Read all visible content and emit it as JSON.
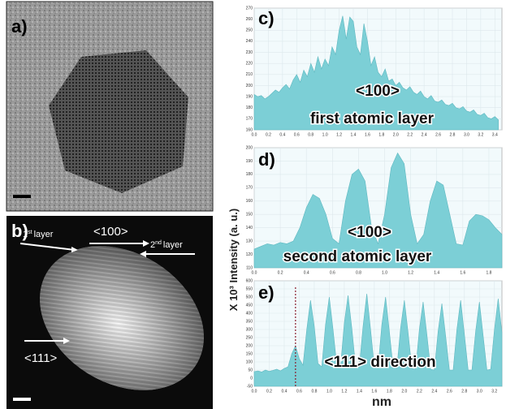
{
  "figure": {
    "y_label": "X 10³ Intensity (a. u.)",
    "x_label": "nm"
  },
  "images": [
    {
      "label": "a)"
    },
    {
      "label": "b)",
      "annotations": {
        "first_layer": {
          "number": "1",
          "suffix": "st",
          "text": "layer"
        },
        "second_layer": {
          "number": "2",
          "suffix": "nd",
          "text": "layer"
        },
        "top_direction": "<100>",
        "side_direction": "<111>"
      }
    }
  ],
  "chart_data": [
    {
      "type": "area",
      "label": "c)",
      "annotations": [
        "<100>",
        "first atomic layer"
      ],
      "color": "#7ccfd6",
      "xlim": [
        0,
        3.5
      ],
      "ylim": [
        160,
        270
      ],
      "xticks": [
        {
          "value": 0,
          "label": "0.0"
        },
        0.2,
        0.4,
        0.6,
        0.8,
        {
          "value": 1,
          "label": "1.0"
        },
        1.2,
        1.4,
        1.6,
        1.8,
        {
          "value": 2,
          "label": "2.0"
        },
        2.2,
        2.4,
        2.6,
        2.8,
        {
          "value": 3,
          "label": "3.0"
        },
        3.2,
        3.4
      ],
      "yticks": [
        160,
        170,
        180,
        190,
        200,
        210,
        220,
        230,
        240,
        250,
        260,
        270
      ],
      "x": [
        0,
        0.05,
        0.1,
        0.15,
        0.2,
        0.25,
        0.3,
        0.35,
        0.4,
        0.45,
        0.5,
        0.55,
        0.6,
        0.65,
        0.7,
        0.75,
        0.8,
        0.85,
        0.9,
        0.95,
        1,
        1.05,
        1.1,
        1.15,
        1.2,
        1.25,
        1.3,
        1.35,
        1.4,
        1.45,
        1.5,
        1.55,
        1.6,
        1.65,
        1.7,
        1.75,
        1.8,
        1.85,
        1.9,
        1.95,
        2,
        2.05,
        2.1,
        2.15,
        2.2,
        2.25,
        2.3,
        2.35,
        2.4,
        2.45,
        2.5,
        2.55,
        2.6,
        2.65,
        2.7,
        2.75,
        2.8,
        2.85,
        2.9,
        2.95,
        3,
        3.05,
        3.1,
        3.15,
        3.2,
        3.25,
        3.3,
        3.35,
        3.4,
        3.45
      ],
      "values": [
        192,
        190,
        191,
        188,
        190,
        193,
        196,
        194,
        198,
        201,
        197,
        205,
        210,
        203,
        214,
        208,
        220,
        212,
        226,
        215,
        224,
        218,
        235,
        228,
        250,
        263,
        242,
        262,
        258,
        235,
        228,
        256,
        240,
        218,
        226,
        212,
        208,
        215,
        204,
        206,
        200,
        203,
        198,
        196,
        199,
        194,
        192,
        195,
        190,
        188,
        191,
        186,
        185,
        187,
        183,
        182,
        184,
        180,
        179,
        181,
        177,
        176,
        178,
        174,
        173,
        175,
        171,
        170,
        172,
        169
      ]
    },
    {
      "type": "area",
      "label": "d)",
      "annotations": [
        "<100>",
        "second atomic layer"
      ],
      "color": "#7ccfd6",
      "xlim": [
        0,
        1.9
      ],
      "ylim": [
        110,
        200
      ],
      "xticks": [
        {
          "value": 0,
          "label": "0.0"
        },
        0.2,
        0.4,
        0.6,
        0.8,
        {
          "value": 1,
          "label": "1.0"
        },
        1.2,
        1.4,
        1.6,
        1.8
      ],
      "yticks": [
        110,
        120,
        130,
        140,
        150,
        160,
        170,
        180,
        190,
        200
      ],
      "x": [
        0,
        0.05,
        0.1,
        0.15,
        0.2,
        0.25,
        0.3,
        0.35,
        0.4,
        0.45,
        0.5,
        0.55,
        0.6,
        0.65,
        0.7,
        0.75,
        0.8,
        0.85,
        0.9,
        0.95,
        1,
        1.05,
        1.1,
        1.15,
        1.2,
        1.25,
        1.3,
        1.35,
        1.4,
        1.45,
        1.5,
        1.55,
        1.6,
        1.65,
        1.7,
        1.75,
        1.8,
        1.85,
        1.9
      ],
      "values": [
        124,
        126,
        128,
        127,
        129,
        128,
        130,
        140,
        155,
        165,
        162,
        150,
        132,
        128,
        160,
        180,
        184,
        175,
        140,
        128,
        150,
        185,
        196,
        188,
        150,
        128,
        135,
        160,
        175,
        172,
        150,
        128,
        127,
        145,
        150,
        149,
        146,
        140,
        135
      ]
    },
    {
      "type": "area",
      "label": "e)",
      "annotations": [
        "<111> direction"
      ],
      "color": "#7ccfd6",
      "marker_x": 0.55,
      "xlim": [
        0,
        3.3
      ],
      "ylim": [
        -50,
        600
      ],
      "xticks": [
        {
          "value": 0,
          "label": "0.0"
        },
        0.2,
        0.4,
        0.6,
        0.8,
        {
          "value": 1,
          "label": "1.0"
        },
        1.2,
        1.4,
        1.6,
        1.8,
        {
          "value": 2,
          "label": "2.0"
        },
        2.2,
        2.4,
        2.6,
        2.8,
        {
          "value": 3,
          "label": "3.0"
        },
        3.2
      ],
      "yticks": [
        -50,
        0,
        50,
        100,
        150,
        200,
        250,
        300,
        350,
        400,
        450,
        500,
        550,
        600
      ],
      "x": [
        0,
        0.05,
        0.1,
        0.15,
        0.2,
        0.25,
        0.3,
        0.35,
        0.4,
        0.45,
        0.5,
        0.55,
        0.6,
        0.65,
        0.7,
        0.75,
        0.8,
        0.85,
        0.9,
        0.95,
        1,
        1.05,
        1.1,
        1.15,
        1.2,
        1.25,
        1.3,
        1.35,
        1.4,
        1.45,
        1.5,
        1.55,
        1.6,
        1.65,
        1.7,
        1.75,
        1.8,
        1.85,
        1.9,
        1.95,
        2,
        2.05,
        2.1,
        2.15,
        2.2,
        2.25,
        2.3,
        2.35,
        2.4,
        2.45,
        2.5,
        2.55,
        2.6,
        2.65,
        2.7,
        2.75,
        2.8,
        2.85,
        2.9,
        2.95,
        3,
        3.05,
        3.1,
        3.15,
        3.2,
        3.25,
        3.3
      ],
      "values": [
        40,
        45,
        38,
        50,
        42,
        48,
        55,
        45,
        60,
        70,
        150,
        200,
        120,
        80,
        300,
        480,
        320,
        90,
        70,
        330,
        500,
        300,
        80,
        70,
        340,
        510,
        310,
        75,
        70,
        320,
        520,
        300,
        70,
        65,
        330,
        500,
        290,
        65,
        60,
        310,
        480,
        280,
        60,
        55,
        300,
        470,
        270,
        55,
        50,
        290,
        460,
        260,
        50,
        50,
        300,
        480,
        270,
        50,
        50,
        290,
        470,
        260,
        50,
        55,
        300,
        490,
        280
      ]
    }
  ]
}
